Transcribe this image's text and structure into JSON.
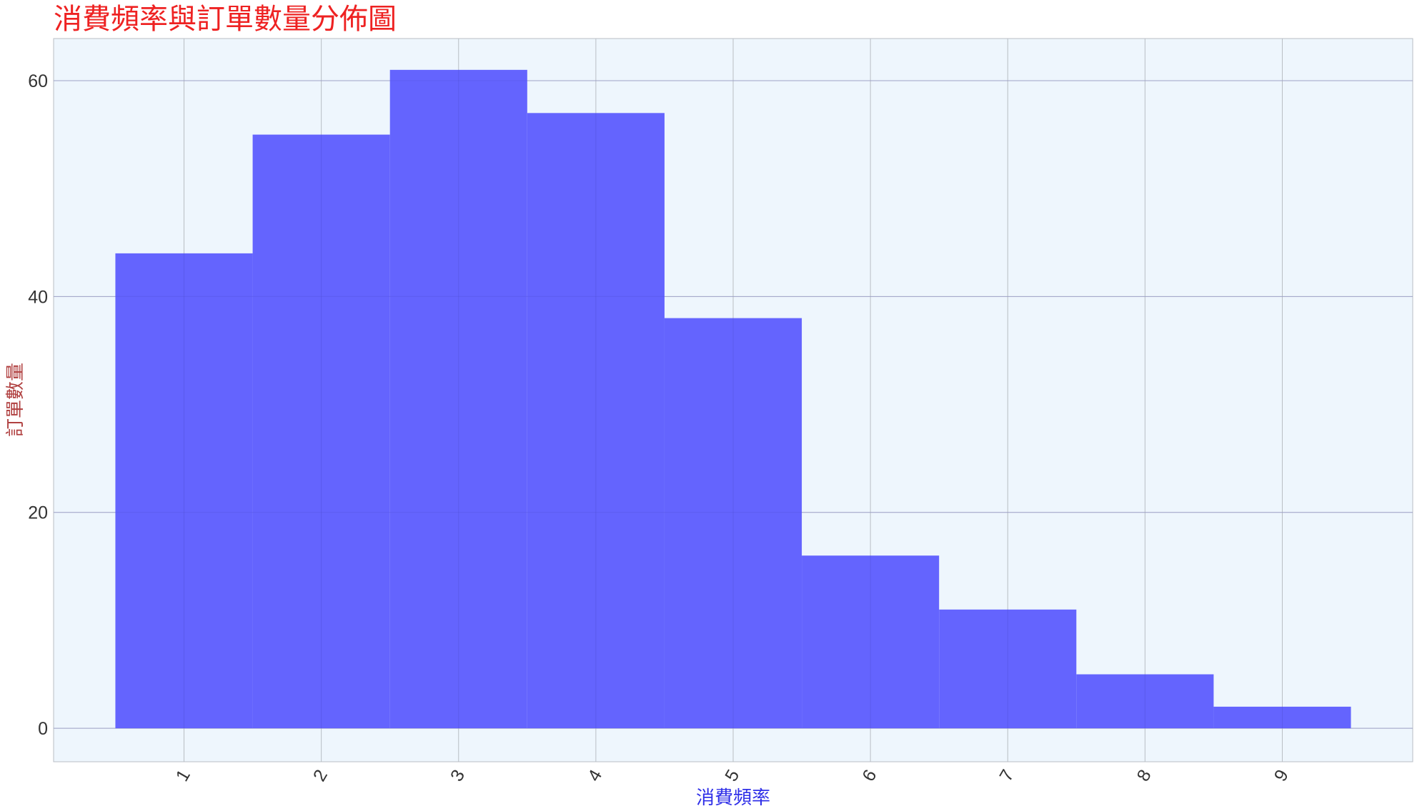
{
  "chart_data": {
    "type": "bar",
    "title": "消費頻率與訂單數量分佈圖",
    "xlabel": "消費頻率",
    "ylabel": "訂單數量",
    "categories": [
      "1",
      "2",
      "3",
      "4",
      "5",
      "6",
      "7",
      "8",
      "9"
    ],
    "x": [
      1,
      2,
      3,
      4,
      5,
      6,
      7,
      8,
      9
    ],
    "values": [
      44,
      55,
      61,
      57,
      38,
      16,
      11,
      5,
      2
    ],
    "xlim": [
      0.05,
      9.95
    ],
    "ylim": [
      -3.1,
      63.9
    ],
    "yticks": [
      0,
      20,
      40,
      60
    ],
    "grid": true,
    "legend": "none",
    "colors": {
      "bar": "#6464fe",
      "plot_background": "#eef6fd",
      "grid": "#b9bec4",
      "title": "#ee2222",
      "xlabel": "#3030e8",
      "ylabel": "#b04040"
    }
  }
}
